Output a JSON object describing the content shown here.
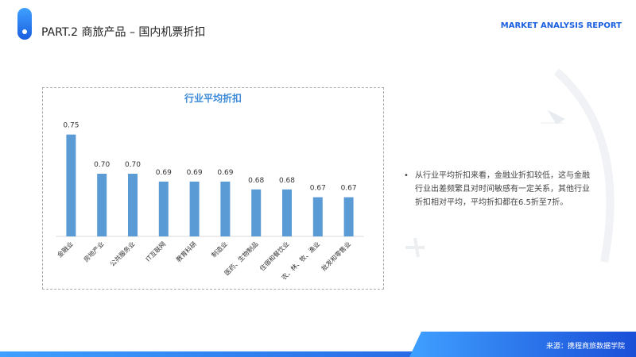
{
  "header": {
    "title": "PART.2 商旅产品 – 国内机票折扣",
    "brand": "MARKET ANALYSIS REPORT"
  },
  "chart_data": {
    "type": "bar",
    "title": "行业平均折扣",
    "categories": [
      "金融业",
      "房地产业",
      "公共服务业",
      "IT互联网",
      "教育科研",
      "制造业",
      "医药、生物制品",
      "住宿和餐饮业",
      "农、林、牧、渔业",
      "批发和零售业"
    ],
    "values": [
      0.75,
      0.7,
      0.7,
      0.69,
      0.69,
      0.69,
      0.68,
      0.68,
      0.67,
      0.67
    ],
    "value_labels": [
      "0.75",
      "0.70",
      "0.70",
      "0.69",
      "0.69",
      "0.69",
      "0.68",
      "0.68",
      "0.67",
      "0.67"
    ],
    "color": "#5b9bd5",
    "ylim": [
      0.62,
      0.78
    ]
  },
  "note": "从行业平均折扣来看，金融业折扣较低，这与金融行业出差频繁且对时间敏感有一定关系，其他行业折扣相对平均，平均折扣都在6.5折至7折。",
  "footer": {
    "source": "来源：携程商旅数据学院"
  }
}
